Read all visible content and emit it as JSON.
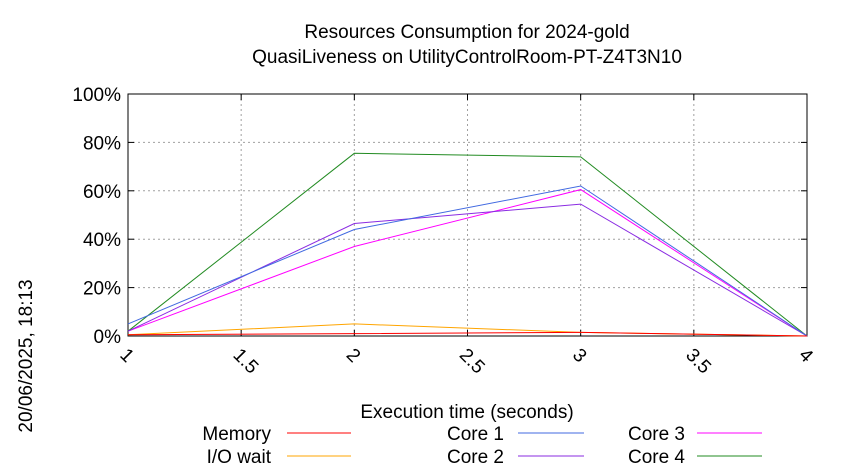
{
  "chart_data": {
    "type": "line",
    "title": "Resources Consumption for 2024-gold",
    "subtitle": "QuasiLiveness on UtilityControlRoom-PT-Z4T3N10",
    "xlabel": "Execution time (seconds)",
    "ylabel": "",
    "side_label": "20/06/2025, 18:13",
    "xlim": [
      1,
      4
    ],
    "ylim": [
      0,
      100
    ],
    "x_ticks": [
      "1",
      "1.5",
      "2",
      "2.5",
      "3",
      "3.5",
      "4"
    ],
    "y_ticks": [
      "0%",
      "20%",
      "40%",
      "60%",
      "80%",
      "100%"
    ],
    "grid": true,
    "legend_position": "bottom",
    "x": [
      1,
      2,
      3,
      4
    ],
    "series": [
      {
        "name": "Memory",
        "color": "#ff0000",
        "values": [
          0.5,
          1.0,
          1.5,
          0
        ]
      },
      {
        "name": "I/O wait",
        "color": "#ffa500",
        "values": [
          0.5,
          5.0,
          1.5,
          0
        ]
      },
      {
        "name": "Core 1",
        "color": "#4169e1",
        "values": [
          5.0,
          44.0,
          62.0,
          0
        ]
      },
      {
        "name": "Core 2",
        "color": "#8a2be2",
        "values": [
          2.0,
          46.5,
          54.5,
          0
        ]
      },
      {
        "name": "Core 3",
        "color": "#ff00ff",
        "values": [
          2.0,
          37.0,
          60.5,
          0
        ]
      },
      {
        "name": "Core 4",
        "color": "#228b22",
        "values": [
          2.0,
          75.5,
          74.0,
          0
        ]
      }
    ]
  }
}
